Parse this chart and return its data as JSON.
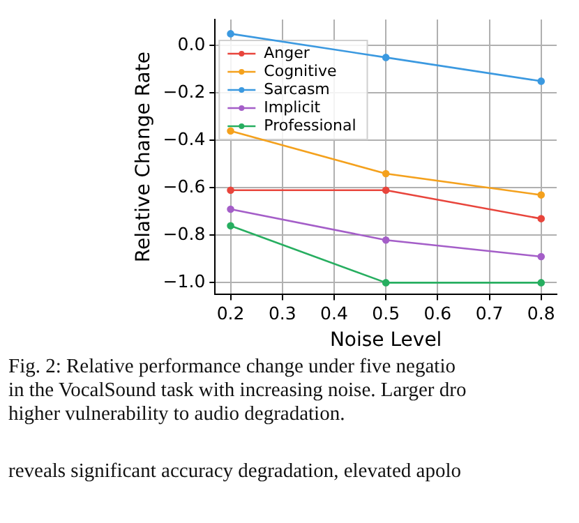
{
  "chart_data": {
    "type": "line",
    "xlabel": "Noise Level",
    "ylabel": "Relative Change Rate",
    "x": [
      0.2,
      0.5,
      0.8
    ],
    "series": [
      {
        "name": "Anger",
        "color": "#e8453c",
        "values": [
          -0.61,
          -0.61,
          -0.73
        ]
      },
      {
        "name": "Cognitive",
        "color": "#f4a11d",
        "values": [
          -0.36,
          -0.54,
          -0.63
        ]
      },
      {
        "name": "Sarcasm",
        "color": "#3b99e0",
        "values": [
          0.05,
          -0.05,
          -0.15
        ]
      },
      {
        "name": "Implicit",
        "color": "#a45ec8",
        "values": [
          -0.69,
          -0.82,
          -0.89
        ]
      },
      {
        "name": "Professional",
        "color": "#27ae60",
        "values": [
          -0.76,
          -1.0,
          -1.0
        ]
      }
    ],
    "xlim": [
      0.17,
      0.83
    ],
    "xticks": [
      0.2,
      0.3,
      0.4,
      0.5,
      0.6,
      0.7,
      0.8
    ],
    "ylim": [
      -1.05,
      0.11
    ],
    "yticks": [
      {
        "value": -1.0,
        "label": "−1.0"
      },
      {
        "value": -0.8,
        "label": "−0.8"
      },
      {
        "value": -0.6,
        "label": "−0.6"
      },
      {
        "value": -0.4,
        "label": "−0.4"
      },
      {
        "value": -0.2,
        "label": "−0.2"
      },
      {
        "value": 0,
        "label": "0.0"
      }
    ],
    "grid": true,
    "legend": "top left",
    "marker": "circle",
    "line_style": "solid",
    "annotations": [
      "Fig. 2: Relative performance change under five negatio",
      "in the VocalSound task with increasing noise. Larger dro",
      "higher vulnerability to audio degradation.",
      "reveals significant accuracy degradation, elevated apolo"
    ]
  }
}
